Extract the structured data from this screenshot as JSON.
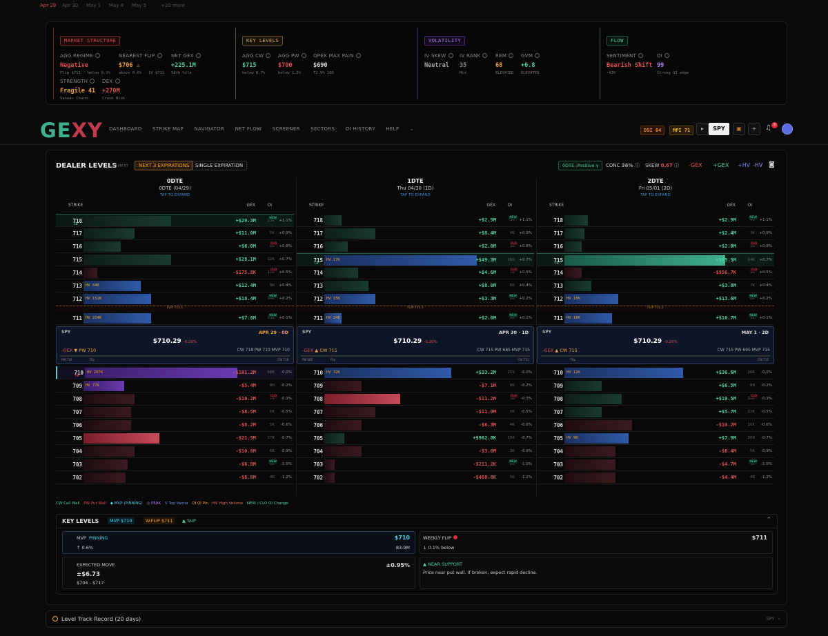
{
  "datebar": {
    "items": [
      "Apr 29",
      "Apr 30",
      "May 1",
      "May 4",
      "May 5",
      "+20 more"
    ]
  },
  "summary": {
    "market": {
      "tag": "MARKET STRUCTURE",
      "agg_regime": {
        "label": "AGG REGIME",
        "value": "Negative",
        "sub": "Flip $711 · below 0.1%"
      },
      "nearest_flip": {
        "label": "NEAREST FLIP",
        "value": "$706 ⚠",
        "sub": "above 0.6% · 1V $711"
      },
      "net_gex": {
        "label": "NET GEX",
        "value": "+225.1M",
        "sub": "58th %ile"
      },
      "strength": {
        "label": "STRENGTH",
        "value": "Fragile 41",
        "sub": "Vanna+ Charm-"
      },
      "dex": {
        "label": "DEX",
        "value": "+270M",
        "sub": "Crash Risk"
      }
    },
    "key": {
      "tag": "KEY LEVELS",
      "agg_cw": {
        "label": "AGG CW",
        "value": "$715",
        "sub": "below 0.7%"
      },
      "agg_pw": {
        "label": "AGG PW",
        "value": "$700",
        "sub": "below 1.5%"
      },
      "opex": {
        "label": "OPEX MAX PAIN",
        "value": "$690",
        "sub": "T2.9% 16D"
      }
    },
    "vol": {
      "tag": "VOLATILITY",
      "iv_skew": {
        "label": "IV SKEW",
        "value": "Neutral",
        "sub": ""
      },
      "iv_rank": {
        "label": "IV RANK",
        "value": "35",
        "sub": "Mid"
      },
      "rem": {
        "label": "REM",
        "value": "68",
        "sub": "ELEVATED"
      },
      "gvm": {
        "label": "GVM",
        "value": "+6.8",
        "sub": "ELEVATED"
      }
    },
    "flow": {
      "tag": "FLOW",
      "sentiment": {
        "label": "SENTIMENT",
        "value": "Bearish Shift",
        "sub": "-43%"
      },
      "oi": {
        "label": "OI",
        "value": "99",
        "sub": "Strong OI edge"
      }
    }
  },
  "nav": {
    "logo": "GEXY",
    "items": [
      "DASHBOARD",
      "STRIKE MAP",
      "NAVIGATOR",
      "NET FLOW",
      "SCREENER",
      "SECTORS",
      "OI HISTORY",
      "HELP"
    ],
    "dsi": "DSI 64",
    "mpi": "MPI 71",
    "ticker": "SPY",
    "notif": "9"
  },
  "dealer": {
    "title": "DEALER LEVELS",
    "time": "6:10 PM ET",
    "btn_next": "NEXT 3 EXPIRATIONS",
    "btn_single": "SINGLE EXPIRATION",
    "dte_badge": "0DTE: Positive γ",
    "conc_label": "CONC",
    "conc": "36%",
    "skew_label": "SKEW",
    "skew": "0.67",
    "toggles": [
      "-GEX",
      "+GEX",
      "+HV",
      "-HV"
    ],
    "th": {
      "strike": "STRIKE",
      "gex": "GEX",
      "oi": "OI"
    },
    "expand": "TAP TO EXPAND"
  },
  "columns": [
    {
      "title": "0DTE",
      "sub": "0DTE (04/29)",
      "flip": "FLIP 711.1",
      "price": {
        "sym": "SPY",
        "date": "APR 29 · 0D",
        "value": "$710.29",
        "pct": "-0.20%",
        "left": "-GEX",
        "left2": "▼ PW 710",
        "right": "CW 718   PW 710   MVP 710",
        "s1": "PW 710",
        "s2": "Flip",
        "s3": "CW 718"
      },
      "above": [
        {
          "s": "718",
          "g": "+$29.3M",
          "oi": "23K",
          "c": "+1.1%",
          "w": 0.52,
          "k": "pos",
          "tag": "NEW",
          "lbl": "CW"
        },
        {
          "s": "717",
          "g": "+$11.0M",
          "oi": "5K",
          "c": "+0.9%",
          "w": 0.3,
          "k": "pos"
        },
        {
          "s": "716",
          "g": "+$6.0M",
          "oi": "6K",
          "c": "+0.8%",
          "w": 0.22,
          "k": "pos",
          "tag": "CLO"
        },
        {
          "s": "715",
          "g": "+$28.1M",
          "oi": "12K",
          "c": "+0.7%",
          "w": 0.52,
          "k": "pos"
        },
        {
          "s": "714",
          "g": "-$175.8K",
          "oi": "10K",
          "c": "+0.5%",
          "w": 0.08,
          "k": "neg",
          "tag": "CLO"
        },
        {
          "s": "713",
          "g": "+$12.4M",
          "oi": "9K",
          "c": "+0.4%",
          "w": 0.34,
          "k": "hv",
          "hv": "HV 64K"
        },
        {
          "s": "712",
          "g": "+$18.4M",
          "oi": "14K",
          "c": "+0.2%",
          "w": 0.4,
          "k": "hv",
          "hv": "HV 152K",
          "tag": "NEW"
        }
      ],
      "pre": {
        "s": "711",
        "g": "+$7.6M",
        "oi": "13K",
        "c": "+0.1%",
        "w": 0.4,
        "k": "hv",
        "hv": "HV 224K",
        "tag": "NEW"
      },
      "below": [
        {
          "s": "710",
          "g": "-$101.2M",
          "oi": "68K",
          "c": "-0.0%",
          "w": 0.9,
          "k": "purple",
          "hv": "HV 207K",
          "lbl": "PW"
        },
        {
          "s": "709",
          "g": "-$5.4M",
          "oi": "9K",
          "c": "-0.2%",
          "w": 0.24,
          "k": "purple",
          "hv": "HV 77K"
        },
        {
          "s": "708",
          "g": "-$10.2M",
          "oi": "7K",
          "c": "-0.3%",
          "w": 0.3,
          "k": "neg",
          "tag": "CLO"
        },
        {
          "s": "707",
          "g": "-$8.5M",
          "oi": "5K",
          "c": "-0.5%",
          "w": 0.28,
          "k": "neg"
        },
        {
          "s": "706",
          "g": "-$8.2M",
          "oi": "5K",
          "c": "-0.6%",
          "w": 0.28,
          "k": "neg"
        },
        {
          "s": "705",
          "g": "-$21.5M",
          "oi": "17K",
          "c": "-0.7%",
          "w": 0.45,
          "k": "negs"
        },
        {
          "s": "704",
          "g": "-$10.8M",
          "oi": "6K",
          "c": "-0.9%",
          "w": 0.3,
          "k": "neg"
        },
        {
          "s": "703",
          "g": "-$6.8M",
          "oi": "6K",
          "c": "-1.0%",
          "w": 0.26,
          "k": "neg",
          "tag": "NEW"
        },
        {
          "s": "702",
          "g": "-$6.0M",
          "oi": "4K",
          "c": "-1.2%",
          "w": 0.25,
          "k": "neg"
        }
      ]
    },
    {
      "title": "1DTE",
      "sub": "Thu 04/30 (1D)",
      "flip": "FLIP 711.1",
      "price": {
        "sym": "SPY",
        "date": "APR 30 · 1D",
        "value": "$710.29",
        "pct": "-0.20%",
        "left": "-GEX",
        "left2": "▲ CW 715",
        "right": "CW 715   PW 685   MVP 715",
        "s1": "PW 685",
        "s2": "Flip",
        "s3": "CW 715"
      },
      "above": [
        {
          "s": "718",
          "g": "+$2.5M",
          "oi": "3K",
          "c": "+1.1%",
          "w": 0.1,
          "k": "pos",
          "tag": "NEW"
        },
        {
          "s": "717",
          "g": "+$8.4M",
          "oi": "4K",
          "c": "+0.9%",
          "w": 0.3,
          "k": "pos"
        },
        {
          "s": "716",
          "g": "+$2.8M",
          "oi": "3K",
          "c": "+0.8%",
          "w": 0.14,
          "k": "pos",
          "tag": "CLO"
        },
        {
          "s": "715",
          "g": "+$49.3M",
          "oi": "16K",
          "c": "+0.7%",
          "w": 0.9,
          "k": "hv",
          "hv": "HV 17K",
          "lbl": "CW"
        },
        {
          "s": "714",
          "g": "+$4.6M",
          "oi": "7K",
          "c": "+0.5%",
          "w": 0.2,
          "k": "pos",
          "tag": "CLO"
        },
        {
          "s": "713",
          "g": "+$8.0M",
          "oi": "6K",
          "c": "+0.4%",
          "w": 0.26,
          "k": "pos"
        },
        {
          "s": "712",
          "g": "+$3.3M",
          "oi": "8K",
          "c": "+0.2%",
          "w": 0.3,
          "k": "hv",
          "hv": "HV 15K",
          "tag": "NEW"
        }
      ],
      "pre": {
        "s": "711",
        "g": "+$2.0M",
        "oi": "6K",
        "c": "+0.1%",
        "w": 0.1,
        "k": "hv",
        "hv": "HV 24K",
        "tag": "NEW"
      },
      "below": [
        {
          "s": "710",
          "g": "+$33.2M",
          "oi": "21K",
          "c": "-0.0%",
          "w": 0.75,
          "k": "hv",
          "hv": "HV 32K"
        },
        {
          "s": "709",
          "g": "-$7.1M",
          "oi": "6K",
          "c": "-0.2%",
          "w": 0.22,
          "k": "neg"
        },
        {
          "s": "708",
          "g": "-$11.2M",
          "oi": "5K",
          "c": "-0.3%",
          "w": 0.45,
          "k": "negs",
          "tag": "CLO"
        },
        {
          "s": "707",
          "g": "-$11.0M",
          "oi": "5K",
          "c": "-0.5%",
          "w": 0.3,
          "k": "neg"
        },
        {
          "s": "706",
          "g": "-$6.3M",
          "oi": "4K",
          "c": "-0.6%",
          "w": 0.22,
          "k": "neg"
        },
        {
          "s": "705",
          "g": "+$962.8K",
          "oi": "15K",
          "c": "-0.7%",
          "w": 0.12,
          "k": "pos"
        },
        {
          "s": "704",
          "g": "-$3.0M",
          "oi": "3K",
          "c": "-0.9%",
          "w": 0.22,
          "k": "neg"
        },
        {
          "s": "703",
          "g": "-$211.2K",
          "oi": "2K",
          "c": "-1.0%",
          "w": 0.06,
          "k": "neg",
          "tag": "NEW"
        },
        {
          "s": "702",
          "g": "-$468.8K",
          "oi": "5K",
          "c": "-1.2%",
          "w": 0.06,
          "k": "neg"
        }
      ]
    },
    {
      "title": "2DTE",
      "sub": "Fri 05/01 (2D)",
      "flip": "FLIP 711.1",
      "price": {
        "sym": "SPY",
        "date": "MAY 1 · 2D",
        "value": "$710.29",
        "pct": "-0.20%",
        "left": "-GEX",
        "left2": "▲ CW 715",
        "right": "CW 715   PW 695   MVP 715",
        "s1": "",
        "s2": "Flip",
        "s3": "CW 715"
      },
      "above": [
        {
          "s": "718",
          "g": "+$2.9M",
          "oi": "4K",
          "c": "+1.1%",
          "w": 0.14,
          "k": "pos",
          "tag": "NEW"
        },
        {
          "s": "717",
          "g": "+$2.4M",
          "oi": "3K",
          "c": "+0.9%",
          "w": 0.12,
          "k": "pos"
        },
        {
          "s": "716",
          "g": "+$2.0M",
          "oi": "5K",
          "c": "+0.8%",
          "w": 0.1,
          "k": "pos",
          "tag": "CLO"
        },
        {
          "s": "715",
          "g": "+$65.5M",
          "oi": "24K",
          "c": "+0.7%",
          "w": 0.95,
          "k": "posb",
          "lbl": "CW"
        },
        {
          "s": "714",
          "g": "-$956.7K",
          "oi": "9K",
          "c": "+0.5%",
          "w": 0.1,
          "k": "neg",
          "tag": "CLO"
        },
        {
          "s": "713",
          "g": "+$3.8M",
          "oi": "7K",
          "c": "+0.4%",
          "w": 0.16,
          "k": "pos"
        },
        {
          "s": "712",
          "g": "+$13.6M",
          "oi": "8K",
          "c": "+0.2%",
          "w": 0.32,
          "k": "hv",
          "hv": "HV 10K",
          "tag": "NEW"
        }
      ],
      "pre": {
        "s": "711",
        "g": "+$10.7M",
        "oi": "5K",
        "c": "+0.1%",
        "w": 0.28,
        "k": "hv",
        "hv": "HV 10K",
        "tag": "NEW"
      },
      "below": [
        {
          "s": "710",
          "g": "+$36.6M",
          "oi": "26K",
          "c": "-0.0%",
          "w": 0.7,
          "k": "hv",
          "hv": "HV 12K"
        },
        {
          "s": "709",
          "g": "+$6.5M",
          "oi": "9K",
          "c": "-0.2%",
          "w": 0.22,
          "k": "pos"
        },
        {
          "s": "708",
          "g": "+$19.5M",
          "oi": "28K",
          "c": "-0.3%",
          "w": 0.34,
          "k": "pos",
          "tag": "CLO"
        },
        {
          "s": "707",
          "g": "+$5.7M",
          "oi": "22K",
          "c": "-0.5%",
          "w": 0.22,
          "k": "pos"
        },
        {
          "s": "706",
          "g": "-$10.2M",
          "oi": "10K",
          "c": "-0.6%",
          "w": 0.4,
          "k": "neg"
        },
        {
          "s": "705",
          "g": "+$7.9M",
          "oi": "20K",
          "c": "-0.7%",
          "w": 0.38,
          "k": "hv",
          "hv": "HV 9K"
        },
        {
          "s": "704",
          "g": "-$6.4M",
          "oi": "5K",
          "c": "-0.9%",
          "w": 0.3,
          "k": "neg"
        },
        {
          "s": "703",
          "g": "-$4.7M",
          "oi": "5K",
          "c": "-1.0%",
          "w": 0.3,
          "k": "neg",
          "tag": "NEW"
        },
        {
          "s": "702",
          "g": "-$4.4M",
          "oi": "4K",
          "c": "-1.2%",
          "w": 0.3,
          "k": "neg"
        }
      ]
    }
  ],
  "legend": [
    "CW Call Wall",
    "PW Put Wall",
    "◆ MVP (PINNING)",
    "◎ PEAK",
    "V Top Vanna",
    "OI OI Pin",
    "HV High Volume",
    "NEW / CLO OI Change"
  ],
  "key_levels": {
    "title": "KEY LEVELS",
    "mvp_badge": "MVP $710",
    "wflip_badge": "W.FLIP $711",
    "sup_badge": "▲ SUP",
    "mvp": {
      "label": "MVP",
      "status": "PINNING",
      "value": "$710",
      "change": "↑ 0.6%",
      "vol": "83.9M"
    },
    "weekly": {
      "label": "WEEKLY FLIP",
      "value": "$711",
      "sub": "↓ 0.1% below"
    },
    "move": {
      "label": "EXPECTED MOVE",
      "value": "±$6.73",
      "range": "$704 - $717",
      "pct": "±0.95%"
    },
    "support": {
      "label": "▲ NEAR SUPPORT",
      "text": "Price near put wall. If broken, expect rapid decline."
    }
  },
  "track": {
    "label": "Level Track Record (20 days)",
    "ticker": "SPY"
  }
}
